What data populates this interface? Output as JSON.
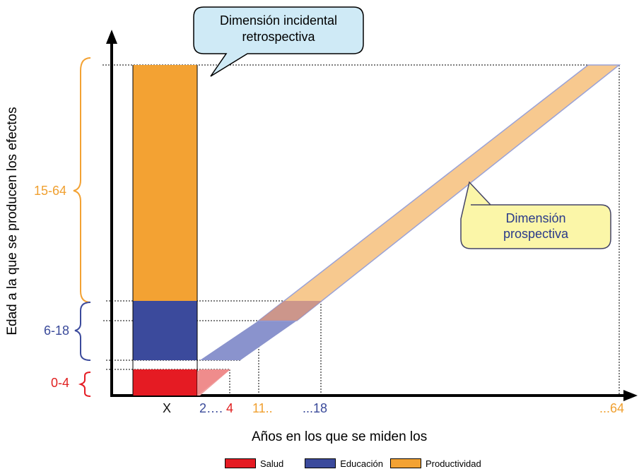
{
  "y_axis_title": "Edad a la que se producen los efectos",
  "x_axis_title": "Años en los que se miden los",
  "age_brackets": [
    {
      "label": "15-64",
      "color": "#f0a030"
    },
    {
      "label": "6-18",
      "color": "#3a4a9a"
    },
    {
      "label": "0-4",
      "color": "#e02020"
    }
  ],
  "x_ticks": [
    {
      "label": "X",
      "color": "#111111"
    },
    {
      "label": "2….",
      "color": "#3a4a9a"
    },
    {
      "label": "4",
      "color": "#e02020"
    },
    {
      "label": "11..",
      "color": "#f0a030"
    },
    {
      "label": "...18",
      "color": "#3a4a9a"
    },
    {
      "label": "...64",
      "color": "#f0a030"
    }
  ],
  "callout_retro": {
    "line1": "Dimensión incidental",
    "line2": "retrospectiva",
    "fill": "#cfeaf6"
  },
  "callout_prosp": {
    "line1": "Dimensión",
    "line2": "prospectiva",
    "fill": "#fbf6a8"
  },
  "legend": [
    {
      "label": "Salud",
      "color": "#e51b23"
    },
    {
      "label": "Educación",
      "color": "#3b4a9c"
    },
    {
      "label": "Productividad",
      "color": "#f3a233"
    }
  ]
}
